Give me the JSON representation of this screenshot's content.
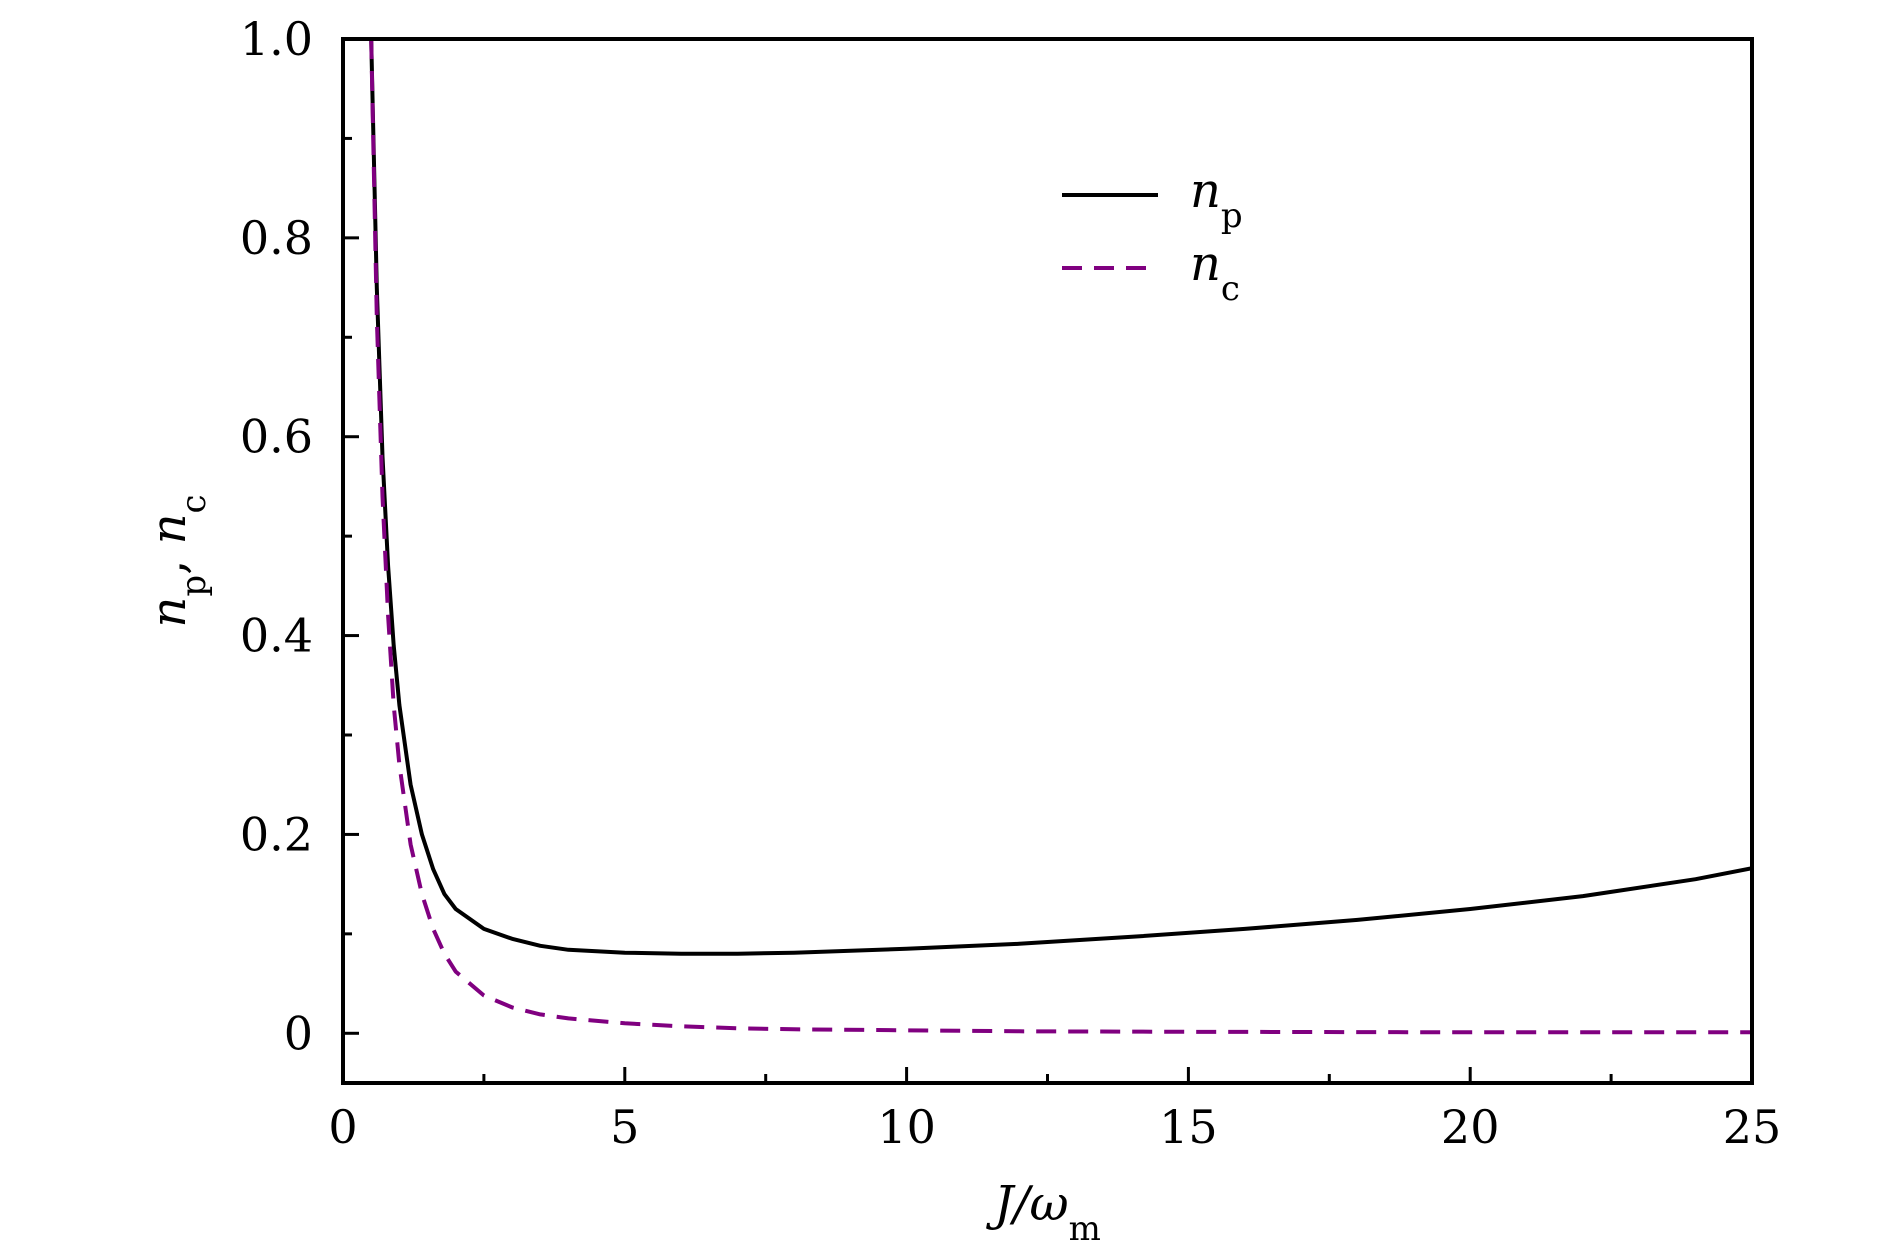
{
  "chart_data": {
    "type": "line",
    "title": "",
    "xlabel": "J/ω_m",
    "xlabel_parts": {
      "main": "J/ω",
      "sub": "m"
    },
    "ylabel": "n_p, n_c",
    "ylabel_parts": {
      "a_main": "n",
      "a_sub": "p",
      "sep": ", ",
      "b_main": "n",
      "b_sub": "c"
    },
    "xlim": [
      0,
      25
    ],
    "ylim": [
      -0.05,
      1.0
    ],
    "x_ticks": [
      0,
      5,
      10,
      15,
      20,
      25
    ],
    "x_tick_labels": [
      "0",
      "5",
      "10",
      "15",
      "20",
      "25"
    ],
    "y_ticks": [
      0,
      0.2,
      0.4,
      0.6,
      0.8,
      1.0
    ],
    "y_tick_labels": [
      "0",
      "0.2",
      "0.4",
      "0.6",
      "0.8",
      "1.0"
    ],
    "grid": false,
    "legend_placement": "top-center",
    "series": [
      {
        "name": "n_p",
        "legend_main": "n",
        "legend_sub": "p",
        "color": "#000000",
        "style": "solid",
        "x": [
          0.5,
          0.6,
          0.7,
          0.8,
          0.9,
          1.0,
          1.2,
          1.4,
          1.6,
          1.8,
          2.0,
          2.5,
          3.0,
          3.5,
          4.0,
          5.0,
          6.0,
          7.0,
          8.0,
          10.0,
          12.0,
          14.0,
          16.0,
          18.0,
          20.0,
          22.0,
          24.0,
          25.0
        ],
        "y": [
          1.0,
          0.75,
          0.58,
          0.47,
          0.39,
          0.33,
          0.25,
          0.2,
          0.165,
          0.14,
          0.125,
          0.105,
          0.095,
          0.088,
          0.084,
          0.081,
          0.08,
          0.08,
          0.081,
          0.085,
          0.09,
          0.097,
          0.105,
          0.114,
          0.125,
          0.138,
          0.155,
          0.166
        ]
      },
      {
        "name": "n_c",
        "legend_main": "n",
        "legend_sub": "c",
        "color": "#800080",
        "style": "dashed",
        "x": [
          0.5,
          0.6,
          0.7,
          0.8,
          0.9,
          1.0,
          1.2,
          1.4,
          1.6,
          1.8,
          2.0,
          2.5,
          3.0,
          3.5,
          4.0,
          5.0,
          6.0,
          7.0,
          8.0,
          10.0,
          12.0,
          15.0,
          20.0,
          25.0
        ],
        "y": [
          1.0,
          0.72,
          0.54,
          0.42,
          0.33,
          0.27,
          0.19,
          0.14,
          0.105,
          0.08,
          0.062,
          0.038,
          0.026,
          0.019,
          0.015,
          0.01,
          0.007,
          0.005,
          0.004,
          0.003,
          0.002,
          0.0015,
          0.001,
          0.001
        ]
      }
    ]
  }
}
